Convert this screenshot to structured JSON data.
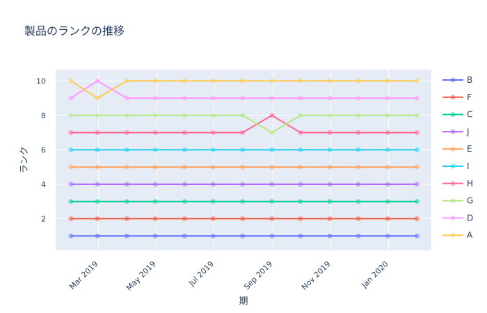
{
  "chart_data": {
    "type": "line",
    "title": "製品のランクの推移",
    "xlabel": "期",
    "ylabel": "ランク",
    "x": [
      "2019-01-31",
      "2019-02-28",
      "2019-03-31",
      "2019-04-30",
      "2019-05-31",
      "2019-06-30",
      "2019-07-31",
      "2019-08-31",
      "2019-09-30",
      "2019-10-31",
      "2019-11-30",
      "2019-12-31",
      "2020-01-31"
    ],
    "x_ticks": [
      {
        "date": "2019-03-01",
        "label": "Mar 2019"
      },
      {
        "date": "2019-05-01",
        "label": "May 2019"
      },
      {
        "date": "2019-07-01",
        "label": "Jul 2019"
      },
      {
        "date": "2019-09-01",
        "label": "Sep 2019"
      },
      {
        "date": "2019-11-01",
        "label": "Nov 2019"
      },
      {
        "date": "2020-01-01",
        "label": "Jan 2020"
      }
    ],
    "y_ticks": [
      2,
      4,
      6,
      8,
      10
    ],
    "ylim": [
      0.16,
      10.66
    ],
    "grid": true,
    "legend_position": "right",
    "series": [
      {
        "name": "B",
        "color": "#636efa",
        "values": [
          1,
          1,
          1,
          1,
          1,
          1,
          1,
          1,
          1,
          1,
          1,
          1,
          1
        ]
      },
      {
        "name": "F",
        "color": "#ef553b",
        "values": [
          2,
          2,
          2,
          2,
          2,
          2,
          2,
          2,
          2,
          2,
          2,
          2,
          2
        ]
      },
      {
        "name": "C",
        "color": "#00cc96",
        "values": [
          3,
          3,
          3,
          3,
          3,
          3,
          3,
          3,
          3,
          3,
          3,
          3,
          3
        ]
      },
      {
        "name": "J",
        "color": "#ab63fa",
        "values": [
          4,
          4,
          4,
          4,
          4,
          4,
          4,
          4,
          4,
          4,
          4,
          4,
          4
        ]
      },
      {
        "name": "E",
        "color": "#ffa15a",
        "values": [
          5,
          5,
          5,
          5,
          5,
          5,
          5,
          5,
          5,
          5,
          5,
          5,
          5
        ]
      },
      {
        "name": "I",
        "color": "#19d3f3",
        "values": [
          6,
          6,
          6,
          6,
          6,
          6,
          6,
          6,
          6,
          6,
          6,
          6,
          6
        ]
      },
      {
        "name": "H",
        "color": "#ff6692",
        "values": [
          7,
          7,
          7,
          7,
          7,
          7,
          7,
          8,
          7,
          7,
          7,
          7,
          7
        ]
      },
      {
        "name": "G",
        "color": "#b6e880",
        "values": [
          8,
          8,
          8,
          8,
          8,
          8,
          8,
          7,
          8,
          8,
          8,
          8,
          8
        ]
      },
      {
        "name": "D",
        "color": "#ff97ff",
        "values": [
          9,
          10,
          9,
          9,
          9,
          9,
          9,
          9,
          9,
          9,
          9,
          9,
          9
        ]
      },
      {
        "name": "A",
        "color": "#fecb52",
        "values": [
          10,
          9,
          10,
          10,
          10,
          10,
          10,
          10,
          10,
          10,
          10,
          10,
          10
        ]
      }
    ]
  }
}
